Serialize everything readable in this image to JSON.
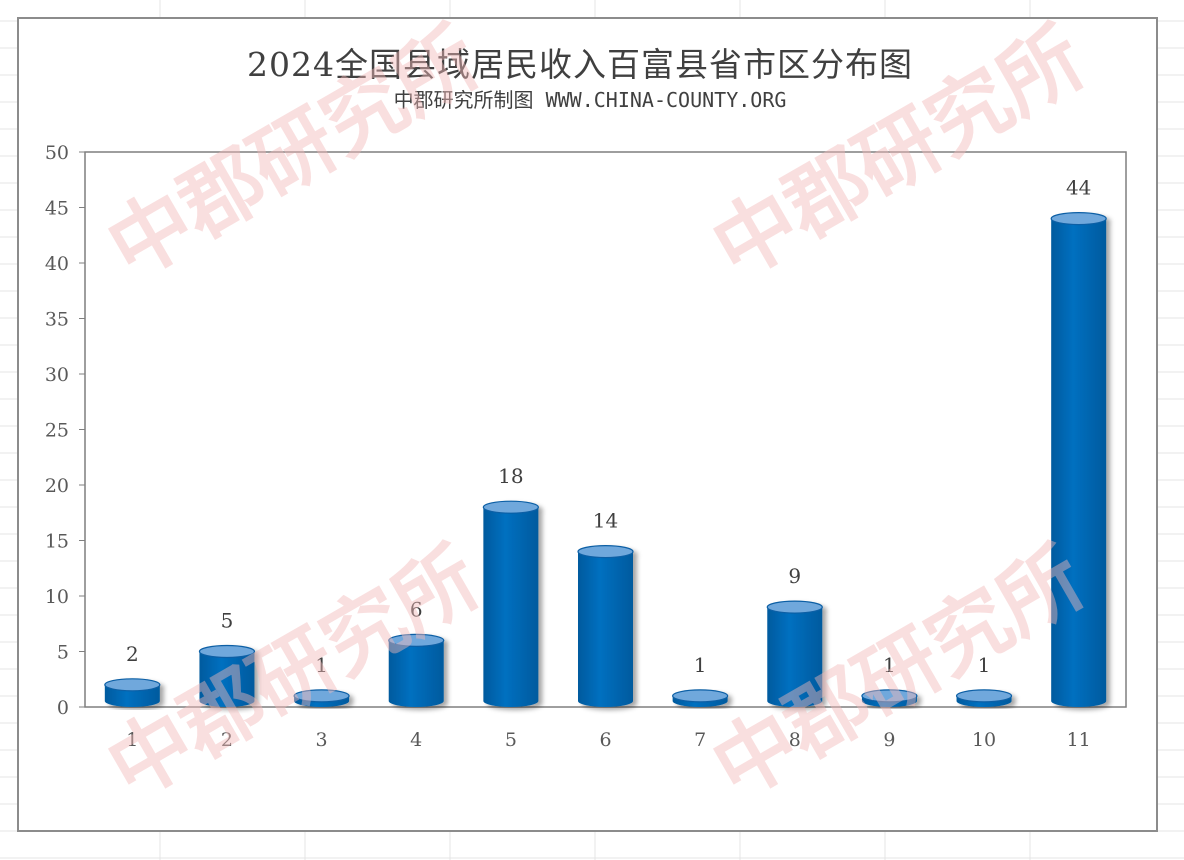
{
  "title": "2024全国县域居民收入百富县省市区分布图",
  "subtitle": "中郡研究所制图 WWW.CHINA-COUNTY.ORG",
  "watermark": "中郡研究所",
  "colors": {
    "bar": "#0070c0",
    "bar_top": "#6fa8dc",
    "axis": "#7f7f7f",
    "frame": "#8c8c8c",
    "watermark": "#f2b8b8"
  },
  "chart_data": {
    "type": "bar",
    "categories": [
      "1",
      "2",
      "3",
      "4",
      "5",
      "6",
      "7",
      "8",
      "9",
      "10",
      "11"
    ],
    "values": [
      2,
      5,
      1,
      6,
      18,
      14,
      1,
      9,
      1,
      1,
      44
    ],
    "ylim": [
      0,
      50
    ],
    "yticks": [
      0,
      5,
      10,
      15,
      20,
      25,
      30,
      35,
      40,
      45,
      50
    ],
    "xlabel": "",
    "ylabel": "",
    "grid": false,
    "legend": "none",
    "style": "3d-cylinder"
  }
}
